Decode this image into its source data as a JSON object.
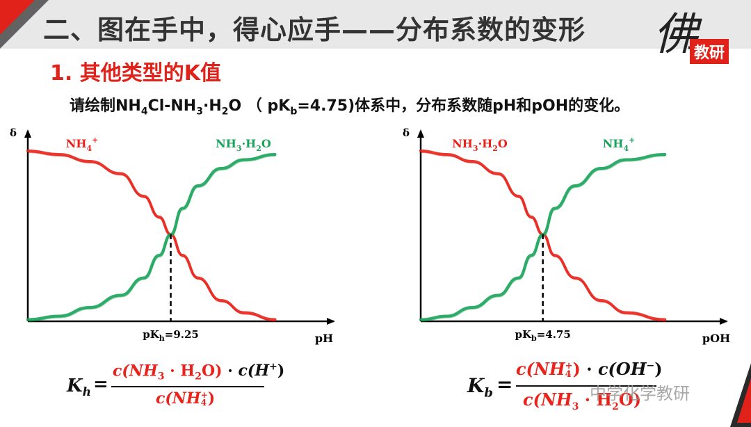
{
  "header": {
    "title": "二、图在手中，得心应手——分布系数的变形",
    "logo_glyph": "佛",
    "logo_badge": "教研"
  },
  "section": {
    "subtitle": "1. 其他类型的K值"
  },
  "question": {
    "part1": "请绘制NH",
    "sub1": "4",
    "part2": "Cl-NH",
    "sub2": "3",
    "part3": "·H",
    "sub3": "2",
    "part4": "O （ pK",
    "sub4": "b",
    "part5": "=4.75)体系中，分布系数随pH和pOH的变化。"
  },
  "colors": {
    "red": "#e8231b",
    "green": "#1aa35a",
    "axis": "#000000"
  },
  "chart_data": [
    {
      "type": "line",
      "ylabel": "δ",
      "xlabel": "pH",
      "marker_label": "pKh=9.25",
      "marker_x": 9.25,
      "series": [
        {
          "name": "NH4+",
          "color": "#e8231b",
          "shape": "decreasing",
          "points": [
            [
              0.0,
              0.98
            ],
            [
              2,
              0.96
            ],
            [
              4,
              0.92
            ],
            [
              6,
              0.85
            ],
            [
              7.5,
              0.72
            ],
            [
              8.5,
              0.6
            ],
            [
              9.25,
              0.5
            ],
            [
              10,
              0.38
            ],
            [
              11,
              0.25
            ],
            [
              12.5,
              0.12
            ],
            [
              14,
              0.05
            ],
            [
              16,
              0.01
            ]
          ]
        },
        {
          "name": "NH3·H2O",
          "color": "#1aa35a",
          "shape": "increasing",
          "points": [
            [
              0.0,
              0.01
            ],
            [
              2,
              0.03
            ],
            [
              4,
              0.08
            ],
            [
              6,
              0.15
            ],
            [
              7.5,
              0.25
            ],
            [
              8.5,
              0.38
            ],
            [
              9.25,
              0.5
            ],
            [
              10,
              0.65
            ],
            [
              11,
              0.78
            ],
            [
              12.5,
              0.88
            ],
            [
              14,
              0.93
            ],
            [
              16,
              0.96
            ]
          ]
        }
      ]
    },
    {
      "type": "line",
      "ylabel": "δ",
      "xlabel": "pOH",
      "marker_label": "pKb=4.75",
      "marker_x": 4.75,
      "series": [
        {
          "name": "NH3·H2O",
          "color": "#e8231b",
          "shape": "decreasing",
          "points": [
            [
              0.0,
              0.98
            ],
            [
              1,
              0.96
            ],
            [
              2,
              0.92
            ],
            [
              3,
              0.85
            ],
            [
              3.8,
              0.72
            ],
            [
              4.3,
              0.6
            ],
            [
              4.75,
              0.5
            ],
            [
              5.2,
              0.38
            ],
            [
              6,
              0.25
            ],
            [
              7,
              0.12
            ],
            [
              8,
              0.05
            ],
            [
              9.5,
              0.01
            ]
          ]
        },
        {
          "name": "NH4+",
          "color": "#1aa35a",
          "shape": "increasing",
          "points": [
            [
              0.0,
              0.01
            ],
            [
              1,
              0.03
            ],
            [
              2,
              0.08
            ],
            [
              3,
              0.15
            ],
            [
              3.8,
              0.25
            ],
            [
              4.3,
              0.38
            ],
            [
              4.75,
              0.5
            ],
            [
              5.2,
              0.65
            ],
            [
              6,
              0.78
            ],
            [
              7,
              0.88
            ],
            [
              8,
              0.93
            ],
            [
              9.5,
              0.96
            ]
          ]
        }
      ]
    }
  ],
  "formula_left": {
    "lhs": "K",
    "lhs_sub": "h",
    "equals": "=",
    "num_a": "c(NH",
    "num_a_sub": "3",
    "num_b": " · H",
    "num_b_sub": "2",
    "num_c": "O)",
    "num_d": " · ",
    "num_e": "c(H",
    "num_e_sup": "+",
    "num_f": ")",
    "den_a": "c(NH",
    "den_sup": "+",
    "den_sub": "4",
    "den_b": ")"
  },
  "formula_right": {
    "lhs": "K",
    "lhs_sub": "b",
    "equals": "=",
    "num_a": "c(NH",
    "num_sup": "+",
    "num_sub": "4",
    "num_b": ")",
    "num_c": " · ",
    "num_d": "c(OH",
    "num_d_sup": "−",
    "num_e": ")",
    "den_a": "c(NH",
    "den_a_sub": "3",
    "den_b": " · H",
    "den_b_sub": "2",
    "den_c": "O)"
  },
  "watermark": {
    "text": "中学化学教研"
  }
}
